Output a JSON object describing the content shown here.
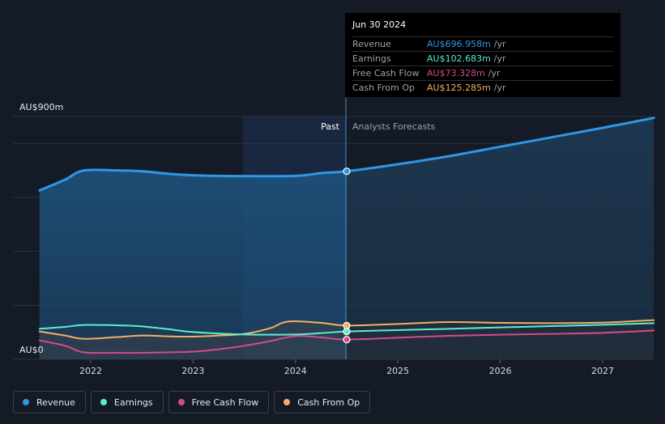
{
  "chart_data": {
    "type": "line",
    "y_unit_top": "AU$900m",
    "y_unit_bottom": "AU$0",
    "ylim": [
      0,
      900
    ],
    "x_ticks": [
      "2022",
      "2023",
      "2024",
      "2025",
      "2026",
      "2027"
    ],
    "past_label": "Past",
    "forecast_label": "Analysts Forecasts",
    "divider_x": 2024.5,
    "series": [
      {
        "name": "Revenue",
        "color": "#2f97e6",
        "points": [
          [
            2021.5,
            626
          ],
          [
            2021.75,
            666
          ],
          [
            2021.93,
            700
          ],
          [
            2022.25,
            700
          ],
          [
            2022.5,
            697
          ],
          [
            2022.75,
            688
          ],
          [
            2023.0,
            682
          ],
          [
            2023.5,
            679
          ],
          [
            2024.0,
            680
          ],
          [
            2024.25,
            690
          ],
          [
            2024.5,
            697
          ],
          [
            2025.0,
            723
          ],
          [
            2025.5,
            753
          ],
          [
            2026.0,
            788
          ],
          [
            2026.5,
            823
          ],
          [
            2027.0,
            858
          ],
          [
            2027.5,
            895
          ]
        ]
      },
      {
        "name": "Earnings",
        "color": "#5cecd2",
        "points": [
          [
            2021.5,
            113
          ],
          [
            2021.75,
            120
          ],
          [
            2021.93,
            127
          ],
          [
            2022.25,
            126
          ],
          [
            2022.5,
            122
          ],
          [
            2022.75,
            112
          ],
          [
            2023.0,
            101
          ],
          [
            2023.5,
            92
          ],
          [
            2024.0,
            92
          ],
          [
            2024.25,
            97
          ],
          [
            2024.5,
            103
          ],
          [
            2025.0,
            108
          ],
          [
            2025.5,
            113
          ],
          [
            2026.0,
            118
          ],
          [
            2026.5,
            123
          ],
          [
            2027.0,
            128
          ],
          [
            2027.5,
            134
          ]
        ]
      },
      {
        "name": "Free Cash Flow",
        "color": "#d24c8a",
        "points": [
          [
            2021.5,
            70
          ],
          [
            2021.75,
            50
          ],
          [
            2021.93,
            26
          ],
          [
            2022.25,
            24
          ],
          [
            2022.5,
            24
          ],
          [
            2022.75,
            26
          ],
          [
            2023.0,
            28
          ],
          [
            2023.25,
            37
          ],
          [
            2023.5,
            50
          ],
          [
            2023.75,
            67
          ],
          [
            2024.0,
            86
          ],
          [
            2024.25,
            81
          ],
          [
            2024.5,
            73
          ],
          [
            2025.0,
            80
          ],
          [
            2025.5,
            87
          ],
          [
            2026.0,
            91
          ],
          [
            2026.5,
            94
          ],
          [
            2027.0,
            98
          ],
          [
            2027.5,
            107
          ]
        ]
      },
      {
        "name": "Cash From Op",
        "color": "#f1b061",
        "points": [
          [
            2021.5,
            103
          ],
          [
            2021.75,
            88
          ],
          [
            2021.93,
            76
          ],
          [
            2022.25,
            82
          ],
          [
            2022.5,
            88
          ],
          [
            2022.75,
            85
          ],
          [
            2023.0,
            84
          ],
          [
            2023.25,
            88
          ],
          [
            2023.5,
            94
          ],
          [
            2023.75,
            115
          ],
          [
            2023.93,
            140
          ],
          [
            2024.25,
            135
          ],
          [
            2024.5,
            125
          ],
          [
            2025.0,
            131
          ],
          [
            2025.5,
            138
          ],
          [
            2026.0,
            135
          ],
          [
            2026.5,
            134
          ],
          [
            2027.0,
            136
          ],
          [
            2027.5,
            145
          ]
        ]
      }
    ]
  },
  "tooltip": {
    "date": "Jun 30 2024",
    "rows": [
      {
        "label": "Revenue",
        "value": "AU$696.958m",
        "unit": "/yr",
        "color": "#2f97e6"
      },
      {
        "label": "Earnings",
        "value": "AU$102.683m",
        "unit": "/yr",
        "color": "#5cecd2"
      },
      {
        "label": "Free Cash Flow",
        "value": "AU$73.328m",
        "unit": "/yr",
        "color": "#d24c8a"
      },
      {
        "label": "Cash From Op",
        "value": "AU$125.285m",
        "unit": "/yr",
        "color": "#f1b061"
      }
    ]
  },
  "legend": [
    {
      "label": "Revenue",
      "color": "#2f97e6"
    },
    {
      "label": "Earnings",
      "color": "#5cecd2"
    },
    {
      "label": "Free Cash Flow",
      "color": "#d24c8a"
    },
    {
      "label": "Cash From Op",
      "color": "#f1b061"
    }
  ]
}
